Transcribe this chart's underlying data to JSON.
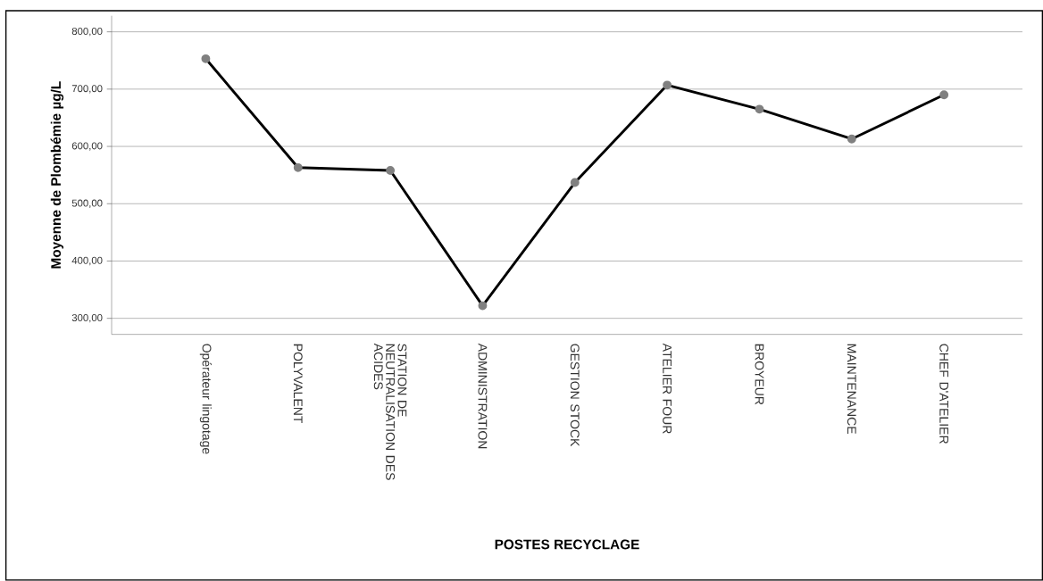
{
  "chart_data": {
    "type": "line",
    "xlabel": "POSTES RECYCLAGE",
    "ylabel": "Moyenne de Plombémie  µg/L",
    "categories": [
      "Opérateur lingotage",
      "POLYVALENT",
      "STATION DE NEUTRALISATION DES ACIDES",
      "ADMINISTRATION",
      "GESTION STOCK",
      "ATELIER FOUR",
      "BROYEUR",
      "MAINTENANCE",
      "CHEF D'ATELIER"
    ],
    "series": [
      {
        "color": "#000000",
        "values": [
          753,
          563,
          558,
          322,
          537,
          707,
          665,
          613,
          690
        ]
      }
    ],
    "ylim": [
      272,
      828
    ],
    "yticks": [
      {
        "value": 300,
        "label": "300,00"
      },
      {
        "value": 400,
        "label": "400,00"
      },
      {
        "value": 500,
        "label": "500,00"
      },
      {
        "value": 600,
        "label": "600,00"
      },
      {
        "value": 700,
        "label": "700,00"
      },
      {
        "value": 800,
        "label": "800,00"
      }
    ],
    "grid": "y",
    "marker": "circle",
    "line_style": "solid"
  }
}
